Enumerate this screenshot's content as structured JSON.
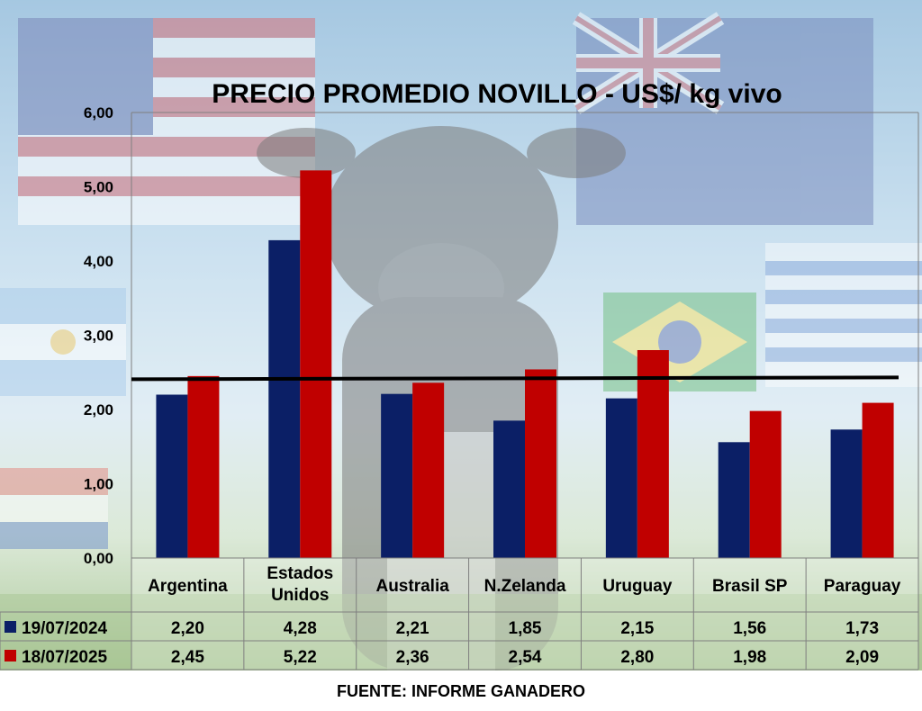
{
  "chart_data": {
    "type": "bar",
    "title": "PRECIO PROMEDIO NOVILLO  - US$/ kg vivo",
    "categories": [
      "Argentina",
      "Estados Unidos",
      "Australia",
      "N.Zelanda",
      "Uruguay",
      "Brasil SP",
      "Paraguay"
    ],
    "series": [
      {
        "name": "19/07/2024",
        "color": "#0b1f66",
        "values": [
          2.2,
          4.28,
          2.21,
          1.85,
          2.15,
          1.56,
          1.73
        ]
      },
      {
        "name": "18/07/2025",
        "color": "#c00000",
        "values": [
          2.45,
          5.22,
          2.36,
          2.54,
          2.8,
          1.98,
          2.09
        ]
      }
    ],
    "table_values": [
      [
        "2,20",
        "4,28",
        "2,21",
        "1,85",
        "2,15",
        "1,56",
        "1,73"
      ],
      [
        "2,45",
        "5,22",
        "2,36",
        "2,54",
        "2,80",
        "1,98",
        "2,09"
      ]
    ],
    "y_ticks": [
      "0,00",
      "1,00",
      "2,00",
      "3,00",
      "4,00",
      "5,00",
      "6,00"
    ],
    "ylim": [
      0,
      6
    ],
    "reference_line": 2.42,
    "legend": "data table below chart",
    "grid": false
  },
  "source": "FUENTE: INFORME GANADERO",
  "background_icons": [
    "usa-flag",
    "uk-flag",
    "australia-flag",
    "argentina-flag",
    "uruguay-flag",
    "brazil-flag",
    "paraguay-flag",
    "new-zealand-flag",
    "steer-photo"
  ]
}
